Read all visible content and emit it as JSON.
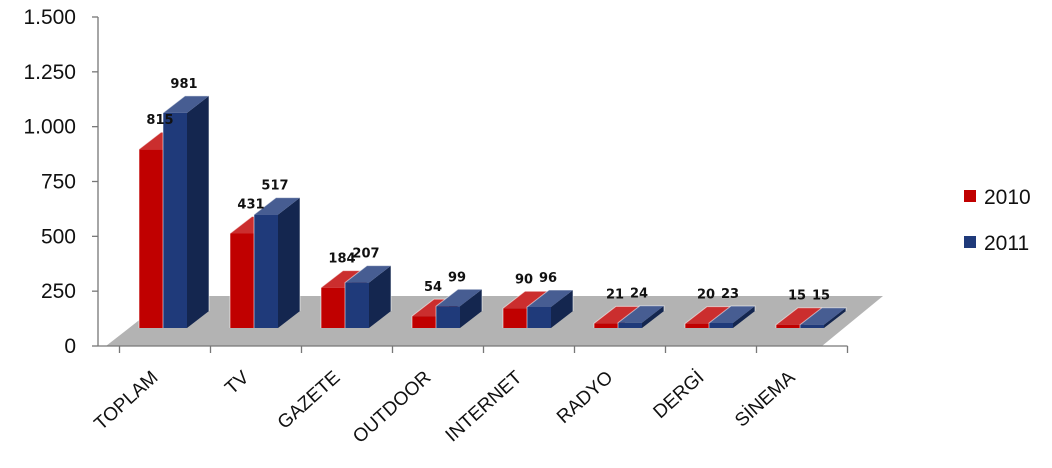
{
  "chart_data": {
    "type": "bar",
    "style": "3d-clustered-column",
    "categories": [
      "TOPLAM",
      "TV",
      "GAZETE",
      "OUTDOOR",
      "INTERNET",
      "RADYO",
      "DERGİ",
      "SİNEMA"
    ],
    "series": [
      {
        "name": "2010",
        "color": "#c00000",
        "values": [
          815,
          431,
          184,
          54,
          90,
          21,
          20,
          15
        ]
      },
      {
        "name": "2011",
        "color": "#1f3a7a",
        "values": [
          981,
          517,
          207,
          99,
          96,
          24,
          23,
          15
        ]
      }
    ],
    "data_labels": [
      [
        "815",
        "431",
        "184",
        "54",
        "90",
        "21",
        "20",
        "15"
      ],
      [
        "981",
        "517",
        "207",
        "99",
        "96",
        "24",
        "23",
        "15"
      ]
    ],
    "yticks": [
      0,
      250,
      500,
      750,
      1000,
      1250,
      1500
    ],
    "ytick_labels": [
      "0",
      "250",
      "500",
      "750",
      "1.000",
      "1.250",
      "1.500"
    ],
    "ylim": [
      0,
      1500
    ],
    "xlabel": "",
    "ylabel": "",
    "legend_position": "right",
    "grid": false,
    "floor_color": "#b3b3b3"
  }
}
